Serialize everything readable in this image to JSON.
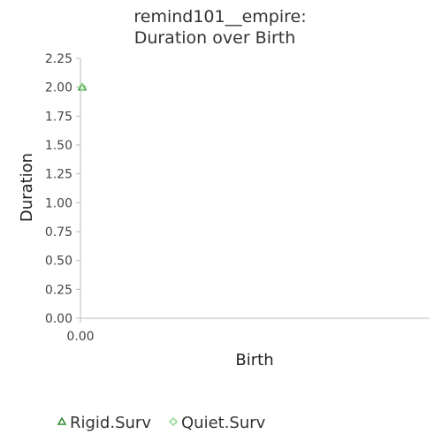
{
  "chart_data": {
    "type": "scatter",
    "title": [
      "remind101__empire:",
      "Duration over Birth"
    ],
    "xlabel": "Birth",
    "ylabel": "Duration",
    "xlim": [
      0,
      1
    ],
    "ylim": [
      0,
      2.25
    ],
    "x_ticks": [
      "0.00"
    ],
    "y_ticks": [
      "0.00",
      "0.25",
      "0.50",
      "0.75",
      "1.00",
      "1.25",
      "1.50",
      "1.75",
      "2.00",
      "2.25"
    ],
    "grid": false,
    "legend_position": "bottom",
    "series": [
      {
        "name": "Rigid.Surv",
        "marker": "triangle",
        "color": "#2e8b2e",
        "points": [
          {
            "x": 0,
            "y": 2.0
          }
        ]
      },
      {
        "name": "Quiet.Surv",
        "marker": "diamond",
        "color": "#8fd68f",
        "points": [
          {
            "x": 0,
            "y": 2.0
          }
        ]
      }
    ]
  }
}
